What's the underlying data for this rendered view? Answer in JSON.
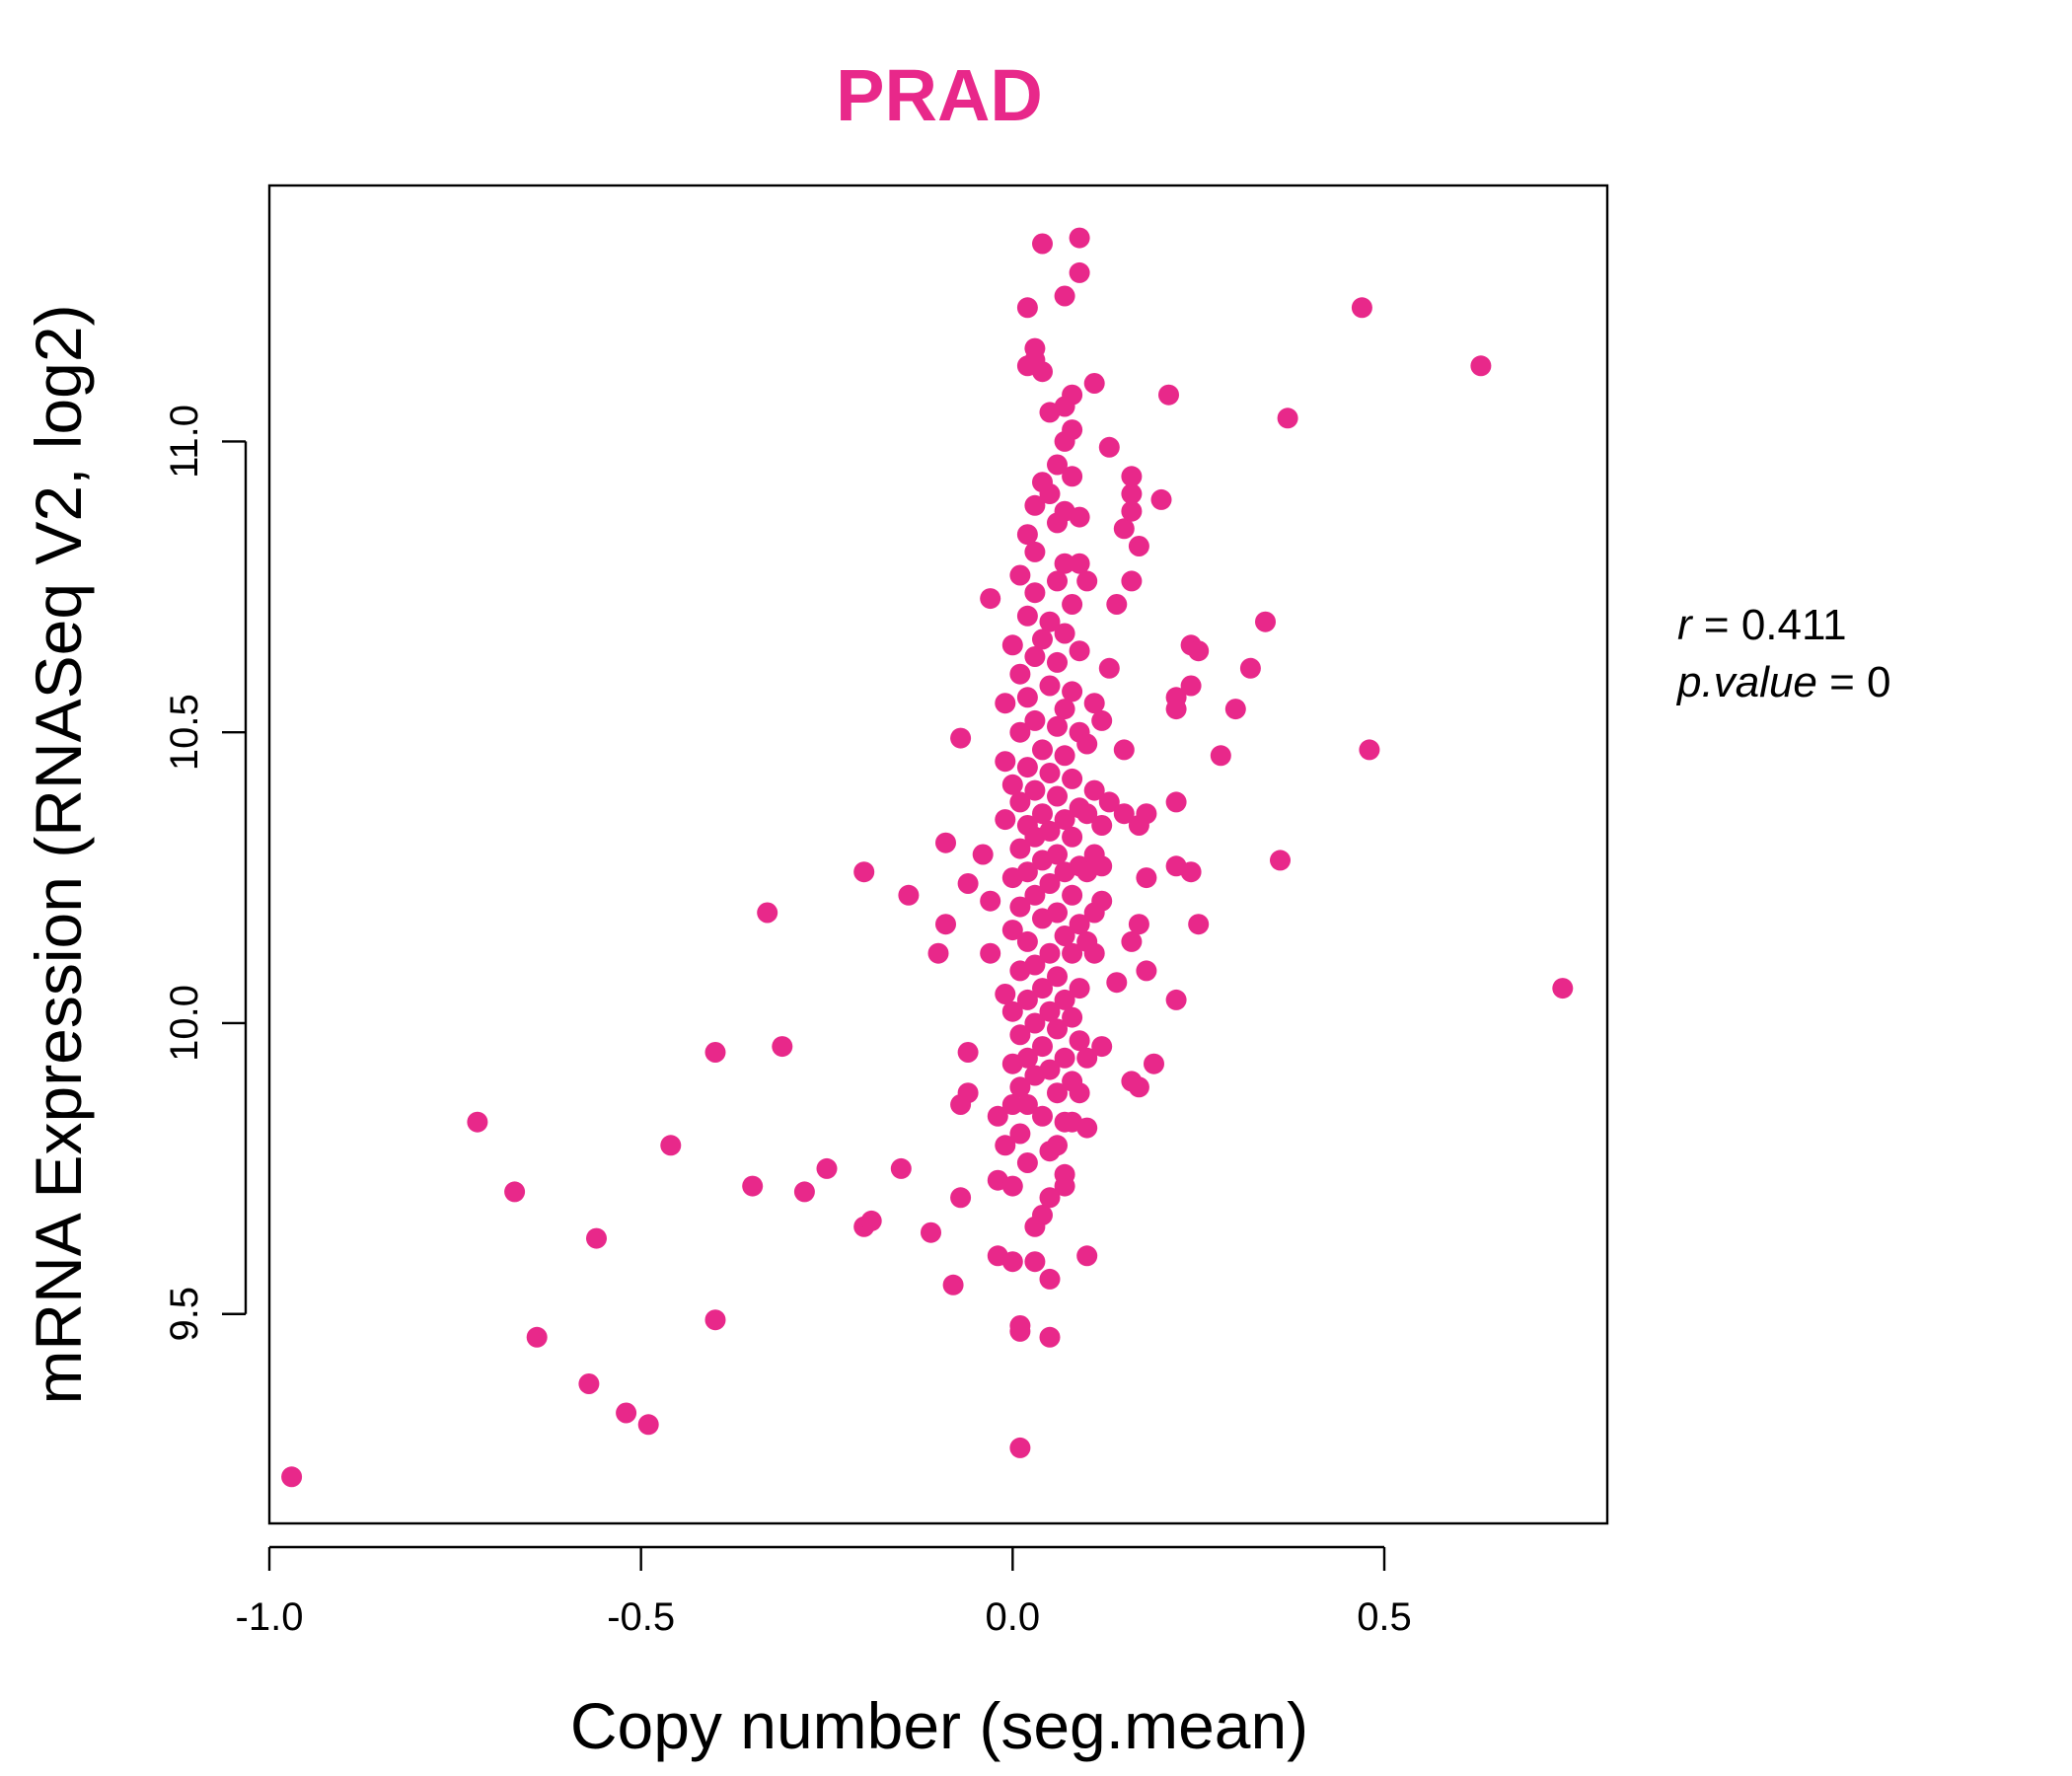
{
  "chart_data": {
    "type": "scatter",
    "title": "PRAD",
    "xlabel": "Copy number (seg.mean)",
    "ylabel": "mRNA Expression (RNASeq V2, log2)",
    "xlim": [
      -1.0,
      0.8
    ],
    "ylim": [
      9.14,
      11.44
    ],
    "xticks": [
      -1.0,
      -0.5,
      0.0,
      0.5
    ],
    "xtick_labels": [
      "-1.0",
      "-0.5",
      "0.0",
      "0.5"
    ],
    "yticks": [
      9.5,
      10.0,
      10.5,
      11.0
    ],
    "ytick_labels": [
      "9.5",
      "10.0",
      "10.5",
      "11.0"
    ],
    "grid": false,
    "legend": "none",
    "colors": {
      "points": "#e8288a",
      "title": "#e8288a"
    },
    "stats": {
      "r_label": "r",
      "r_value": "0.411",
      "p_label": "p.value",
      "p_value": "0"
    },
    "points": [
      [
        -0.97,
        9.22
      ],
      [
        -0.72,
        9.83
      ],
      [
        -0.67,
        9.71
      ],
      [
        -0.64,
        9.46
      ],
      [
        -0.57,
        9.38
      ],
      [
        -0.56,
        9.63
      ],
      [
        -0.52,
        9.33
      ],
      [
        -0.49,
        9.31
      ],
      [
        -0.46,
        9.79
      ],
      [
        -0.4,
        9.95
      ],
      [
        -0.4,
        9.49
      ],
      [
        -0.35,
        9.72
      ],
      [
        -0.33,
        10.19
      ],
      [
        -0.31,
        9.96
      ],
      [
        -0.28,
        9.71
      ],
      [
        -0.25,
        9.75
      ],
      [
        -0.2,
        10.26
      ],
      [
        -0.2,
        9.65
      ],
      [
        -0.19,
        9.66
      ],
      [
        -0.15,
        9.75
      ],
      [
        -0.14,
        10.22
      ],
      [
        -0.11,
        9.64
      ],
      [
        -0.1,
        10.12
      ],
      [
        -0.09,
        10.31
      ],
      [
        -0.09,
        10.17
      ],
      [
        -0.08,
        9.55
      ],
      [
        -0.07,
        10.49
      ],
      [
        -0.07,
        9.7
      ],
      [
        -0.07,
        9.86
      ],
      [
        -0.06,
        9.88
      ],
      [
        -0.06,
        9.95
      ],
      [
        -0.06,
        10.24
      ],
      [
        -0.04,
        10.29
      ],
      [
        -0.03,
        10.21
      ],
      [
        -0.03,
        10.73
      ],
      [
        -0.03,
        10.12
      ],
      [
        -0.02,
        9.84
      ],
      [
        -0.02,
        9.73
      ],
      [
        -0.02,
        9.6
      ],
      [
        -0.01,
        10.55
      ],
      [
        -0.01,
        10.45
      ],
      [
        -0.01,
        10.35
      ],
      [
        -0.01,
        10.05
      ],
      [
        -0.01,
        9.79
      ],
      [
        0.0,
        9.72
      ],
      [
        0.0,
        9.59
      ],
      [
        0.0,
        10.65
      ],
      [
        0.0,
        10.41
      ],
      [
        0.0,
        10.25
      ],
      [
        0.0,
        10.16
      ],
      [
        0.0,
        10.02
      ],
      [
        0.0,
        9.93
      ],
      [
        0.0,
        9.86
      ],
      [
        0.01,
        9.47
      ],
      [
        0.01,
        9.48
      ],
      [
        0.01,
        9.27
      ],
      [
        0.01,
        10.77
      ],
      [
        0.01,
        10.6
      ],
      [
        0.01,
        10.5
      ],
      [
        0.01,
        10.38
      ],
      [
        0.01,
        10.3
      ],
      [
        0.01,
        10.2
      ],
      [
        0.01,
        10.09
      ],
      [
        0.01,
        9.98
      ],
      [
        0.01,
        9.89
      ],
      [
        0.01,
        9.81
      ],
      [
        0.02,
        11.23
      ],
      [
        0.02,
        10.84
      ],
      [
        0.02,
        10.7
      ],
      [
        0.02,
        10.56
      ],
      [
        0.02,
        10.44
      ],
      [
        0.02,
        10.34
      ],
      [
        0.02,
        10.26
      ],
      [
        0.02,
        10.14
      ],
      [
        0.02,
        10.04
      ],
      [
        0.02,
        9.94
      ],
      [
        0.02,
        9.86
      ],
      [
        0.02,
        9.76
      ],
      [
        0.02,
        11.13
      ],
      [
        0.03,
        10.81
      ],
      [
        0.03,
        10.63
      ],
      [
        0.03,
        10.52
      ],
      [
        0.03,
        10.4
      ],
      [
        0.03,
        10.32
      ],
      [
        0.03,
        10.22
      ],
      [
        0.03,
        10.1
      ],
      [
        0.03,
        10.0
      ],
      [
        0.03,
        9.91
      ],
      [
        0.03,
        9.59
      ],
      [
        0.03,
        9.65
      ],
      [
        0.03,
        11.16
      ],
      [
        0.03,
        11.14
      ],
      [
        0.03,
        10.89
      ],
      [
        0.03,
        10.74
      ],
      [
        0.04,
        11.34
      ],
      [
        0.04,
        11.12
      ],
      [
        0.04,
        10.93
      ],
      [
        0.04,
        10.66
      ],
      [
        0.04,
        10.47
      ],
      [
        0.04,
        10.36
      ],
      [
        0.04,
        10.28
      ],
      [
        0.04,
        10.18
      ],
      [
        0.04,
        10.06
      ],
      [
        0.04,
        9.96
      ],
      [
        0.04,
        9.84
      ],
      [
        0.04,
        9.67
      ],
      [
        0.05,
        11.05
      ],
      [
        0.05,
        10.91
      ],
      [
        0.05,
        10.69
      ],
      [
        0.05,
        10.58
      ],
      [
        0.05,
        10.43
      ],
      [
        0.05,
        10.33
      ],
      [
        0.05,
        10.24
      ],
      [
        0.05,
        10.12
      ],
      [
        0.05,
        10.02
      ],
      [
        0.05,
        9.92
      ],
      [
        0.05,
        9.78
      ],
      [
        0.05,
        9.7
      ],
      [
        0.05,
        9.56
      ],
      [
        0.05,
        9.46
      ],
      [
        0.06,
        10.96
      ],
      [
        0.06,
        10.86
      ],
      [
        0.06,
        10.76
      ],
      [
        0.06,
        10.62
      ],
      [
        0.06,
        10.51
      ],
      [
        0.06,
        10.39
      ],
      [
        0.06,
        10.29
      ],
      [
        0.06,
        10.19
      ],
      [
        0.06,
        10.08
      ],
      [
        0.06,
        9.99
      ],
      [
        0.06,
        9.88
      ],
      [
        0.06,
        9.79
      ],
      [
        0.07,
        11.25
      ],
      [
        0.07,
        11.06
      ],
      [
        0.07,
        11.0
      ],
      [
        0.07,
        10.88
      ],
      [
        0.07,
        10.79
      ],
      [
        0.07,
        10.67
      ],
      [
        0.07,
        10.54
      ],
      [
        0.07,
        10.46
      ],
      [
        0.07,
        10.35
      ],
      [
        0.07,
        10.26
      ],
      [
        0.07,
        10.15
      ],
      [
        0.07,
        10.04
      ],
      [
        0.07,
        9.94
      ],
      [
        0.07,
        9.83
      ],
      [
        0.07,
        9.74
      ],
      [
        0.07,
        9.72
      ],
      [
        0.08,
        11.08
      ],
      [
        0.08,
        10.94
      ],
      [
        0.08,
        10.72
      ],
      [
        0.08,
        10.57
      ],
      [
        0.08,
        10.42
      ],
      [
        0.08,
        10.32
      ],
      [
        0.08,
        10.22
      ],
      [
        0.08,
        10.12
      ],
      [
        0.08,
        10.01
      ],
      [
        0.08,
        9.9
      ],
      [
        0.08,
        9.83
      ],
      [
        0.08,
        11.02
      ],
      [
        0.09,
        11.35
      ],
      [
        0.09,
        11.29
      ],
      [
        0.09,
        10.79
      ],
      [
        0.09,
        10.64
      ],
      [
        0.09,
        10.5
      ],
      [
        0.09,
        10.37
      ],
      [
        0.09,
        10.27
      ],
      [
        0.09,
        10.17
      ],
      [
        0.09,
        10.06
      ],
      [
        0.09,
        9.97
      ],
      [
        0.09,
        9.88
      ],
      [
        0.09,
        10.87
      ],
      [
        0.1,
        10.76
      ],
      [
        0.1,
        10.48
      ],
      [
        0.1,
        10.36
      ],
      [
        0.1,
        10.26
      ],
      [
        0.1,
        10.14
      ],
      [
        0.1,
        9.94
      ],
      [
        0.1,
        9.82
      ],
      [
        0.1,
        9.6
      ],
      [
        0.11,
        11.1
      ],
      [
        0.11,
        10.55
      ],
      [
        0.11,
        10.4
      ],
      [
        0.11,
        10.29
      ],
      [
        0.11,
        10.19
      ],
      [
        0.11,
        10.12
      ],
      [
        0.12,
        10.34
      ],
      [
        0.12,
        10.27
      ],
      [
        0.12,
        10.21
      ],
      [
        0.12,
        9.96
      ],
      [
        0.12,
        10.52
      ],
      [
        0.13,
        10.61
      ],
      [
        0.13,
        10.38
      ],
      [
        0.13,
        10.99
      ],
      [
        0.14,
        10.72
      ],
      [
        0.14,
        10.07
      ],
      [
        0.15,
        10.85
      ],
      [
        0.15,
        10.47
      ],
      [
        0.15,
        10.36
      ],
      [
        0.16,
        10.94
      ],
      [
        0.16,
        10.91
      ],
      [
        0.16,
        10.88
      ],
      [
        0.16,
        10.76
      ],
      [
        0.16,
        10.14
      ],
      [
        0.16,
        9.9
      ],
      [
        0.17,
        10.17
      ],
      [
        0.17,
        10.34
      ],
      [
        0.17,
        10.82
      ],
      [
        0.17,
        9.89
      ],
      [
        0.18,
        10.36
      ],
      [
        0.18,
        10.25
      ],
      [
        0.18,
        10.09
      ],
      [
        0.19,
        9.93
      ],
      [
        0.2,
        10.9
      ],
      [
        0.21,
        11.08
      ],
      [
        0.22,
        10.56
      ],
      [
        0.22,
        10.54
      ],
      [
        0.22,
        10.38
      ],
      [
        0.22,
        10.27
      ],
      [
        0.22,
        10.04
      ],
      [
        0.24,
        10.65
      ],
      [
        0.24,
        10.58
      ],
      [
        0.24,
        10.26
      ],
      [
        0.25,
        10.64
      ],
      [
        0.25,
        10.17
      ],
      [
        0.28,
        10.46
      ],
      [
        0.3,
        10.54
      ],
      [
        0.32,
        10.61
      ],
      [
        0.34,
        10.69
      ],
      [
        0.36,
        10.28
      ],
      [
        0.37,
        11.04
      ],
      [
        0.47,
        11.23
      ],
      [
        0.48,
        10.47
      ],
      [
        0.63,
        11.13
      ],
      [
        0.74,
        10.06
      ]
    ]
  }
}
